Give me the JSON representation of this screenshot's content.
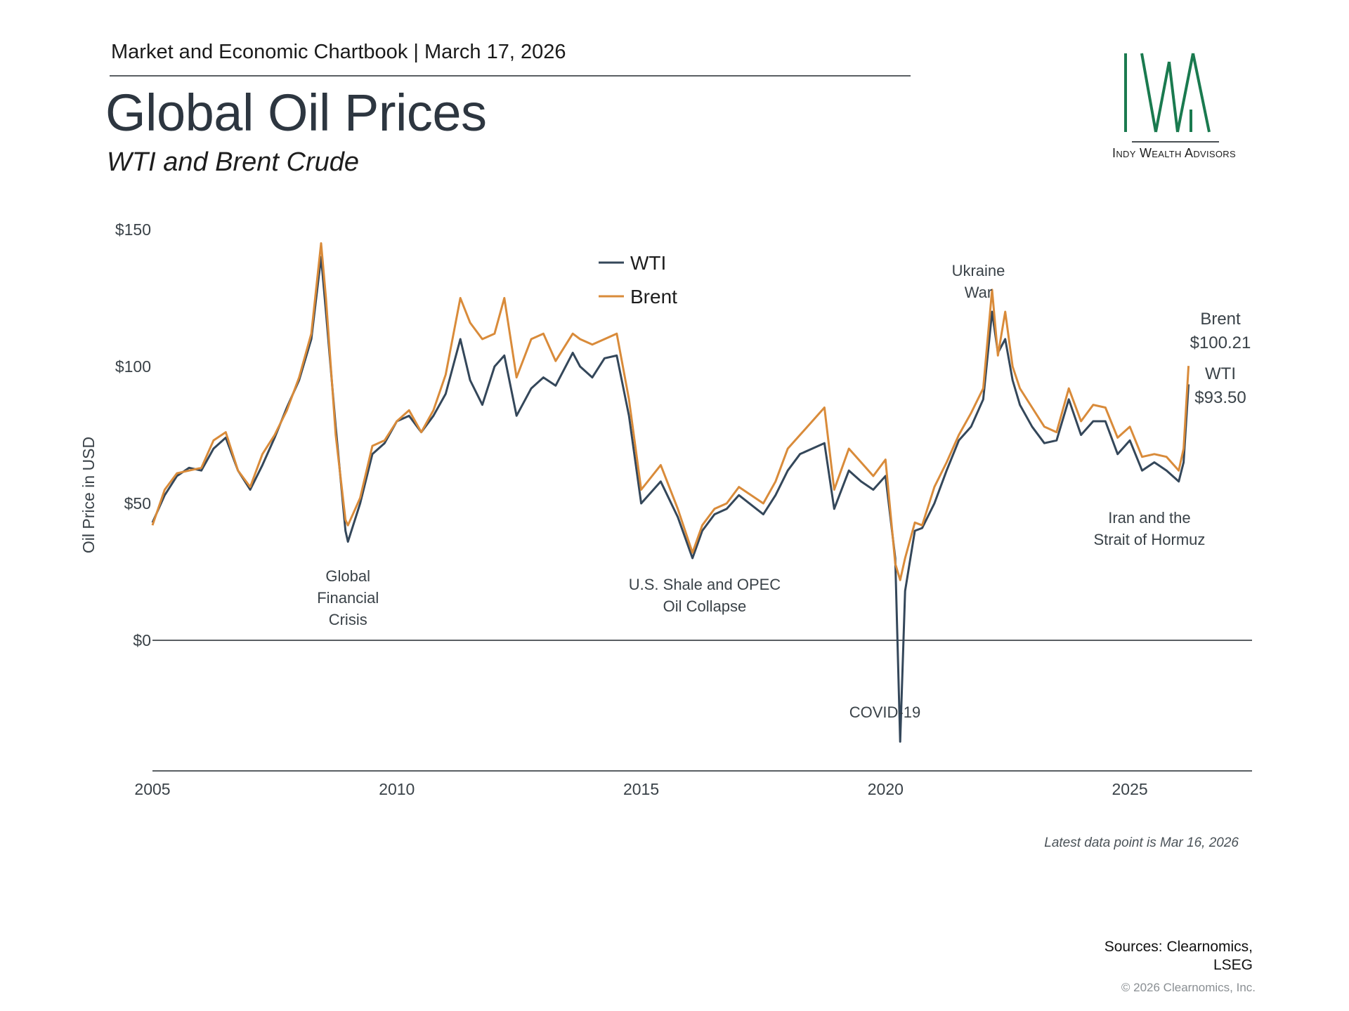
{
  "header": {
    "chartbook": "Market and Economic Chartbook | March 17, 2026",
    "title": "Global Oil Prices",
    "subtitle": "WTI and Brent Crude"
  },
  "logo": {
    "mark": "IWA",
    "name": "Indy Wealth Advisors",
    "color": "#1a7a4f"
  },
  "footer": {
    "latest_note": "Latest data point is Mar 16, 2026",
    "sources_line1": "Sources: Clearnomics,",
    "sources_line2": "LSEG",
    "copyright": "© 2026 Clearnomics, Inc."
  },
  "chart_data": {
    "type": "line",
    "title": "Global Oil Prices",
    "subtitle": "WTI and Brent Crude",
    "xlabel": "",
    "ylabel": "Oil Price in USD",
    "xlim": [
      2005,
      2027.5
    ],
    "ylim": [
      -50,
      150
    ],
    "x_ticks": [
      2005,
      2010,
      2015,
      2020,
      2025
    ],
    "x_tick_labels": [
      "2005",
      "2010",
      "2015",
      "2020",
      "2025"
    ],
    "y_ticks": [
      0,
      50,
      100,
      150
    ],
    "y_tick_labels": [
      "$0",
      "$50",
      "$100",
      "$150"
    ],
    "grid": false,
    "legend": {
      "position": "top-center",
      "entries": [
        "WTI",
        "Brent"
      ]
    },
    "colors": {
      "WTI": "#34475a",
      "Brent": "#d98b3a",
      "axis": "#5a5f63",
      "label": "#3a4248"
    },
    "x": [
      2005.0,
      2005.25,
      2005.5,
      2005.75,
      2006.0,
      2006.25,
      2006.5,
      2006.75,
      2007.0,
      2007.25,
      2007.5,
      2007.75,
      2008.0,
      2008.25,
      2008.45,
      2008.55,
      2008.75,
      2008.95,
      2009.0,
      2009.25,
      2009.5,
      2009.75,
      2010.0,
      2010.25,
      2010.5,
      2010.75,
      2011.0,
      2011.3,
      2011.5,
      2011.75,
      2012.0,
      2012.2,
      2012.45,
      2012.75,
      2013.0,
      2013.25,
      2013.6,
      2013.75,
      2014.0,
      2014.25,
      2014.5,
      2014.75,
      2015.0,
      2015.4,
      2015.75,
      2016.05,
      2016.25,
      2016.5,
      2016.75,
      2017.0,
      2017.5,
      2017.75,
      2018.0,
      2018.25,
      2018.75,
      2018.95,
      2019.25,
      2019.5,
      2019.75,
      2020.0,
      2020.2,
      2020.3,
      2020.4,
      2020.6,
      2020.75,
      2021.0,
      2021.25,
      2021.5,
      2021.75,
      2022.0,
      2022.18,
      2022.3,
      2022.45,
      2022.6,
      2022.75,
      2023.0,
      2023.25,
      2023.5,
      2023.75,
      2024.0,
      2024.25,
      2024.5,
      2024.75,
      2025.0,
      2025.25,
      2025.5,
      2025.75,
      2026.0,
      2026.1,
      2026.2
    ],
    "series": [
      {
        "name": "WTI",
        "values": [
          43,
          53,
          60,
          63,
          62,
          70,
          74,
          62,
          55,
          64,
          74,
          85,
          95,
          110,
          140,
          120,
          78,
          40,
          36,
          50,
          68,
          72,
          80,
          82,
          76,
          82,
          90,
          110,
          95,
          86,
          100,
          104,
          82,
          92,
          96,
          93,
          105,
          100,
          96,
          103,
          104,
          82,
          50,
          58,
          45,
          30,
          40,
          46,
          48,
          53,
          46,
          53,
          62,
          68,
          72,
          48,
          62,
          58,
          55,
          60,
          30,
          -37,
          18,
          40,
          41,
          50,
          62,
          73,
          78,
          88,
          120,
          105,
          110,
          95,
          86,
          78,
          72,
          73,
          88,
          75,
          80,
          80,
          68,
          73,
          62,
          65,
          62,
          58,
          65,
          93.5
        ]
      },
      {
        "name": "Brent",
        "values": [
          42,
          55,
          61,
          62,
          63,
          73,
          76,
          62,
          56,
          68,
          75,
          84,
          96,
          112,
          145,
          125,
          75,
          44,
          42,
          52,
          71,
          73,
          80,
          84,
          76,
          84,
          97,
          125,
          116,
          110,
          112,
          125,
          96,
          110,
          112,
          102,
          112,
          110,
          108,
          110,
          112,
          88,
          55,
          64,
          48,
          32,
          42,
          48,
          50,
          56,
          50,
          58,
          70,
          75,
          85,
          55,
          70,
          65,
          60,
          66,
          28,
          22,
          30,
          43,
          42,
          56,
          65,
          75,
          83,
          92,
          128,
          104,
          120,
          100,
          92,
          85,
          78,
          76,
          92,
          80,
          86,
          85,
          74,
          78,
          67,
          68,
          67,
          62,
          70,
          100.21
        ]
      }
    ],
    "annotations": [
      {
        "label": [
          "Global",
          "Financial",
          "Crisis"
        ],
        "x": 2009.0
      },
      {
        "label": [
          "U.S. Shale and OPEC",
          "Oil Collapse"
        ],
        "x": 2016.3
      },
      {
        "label": [
          "COVID-19"
        ],
        "x": 2019.7
      },
      {
        "label": [
          "Ukraine",
          "War"
        ],
        "x": 2021.9
      },
      {
        "label": [
          "Iran and the",
          "Strait of Hormuz"
        ],
        "x": 2025.4
      }
    ],
    "end_labels": [
      {
        "series": "Brent",
        "name": "Brent",
        "value": "$100.21"
      },
      {
        "series": "WTI",
        "name": "WTI",
        "value": "$93.50"
      }
    ]
  }
}
